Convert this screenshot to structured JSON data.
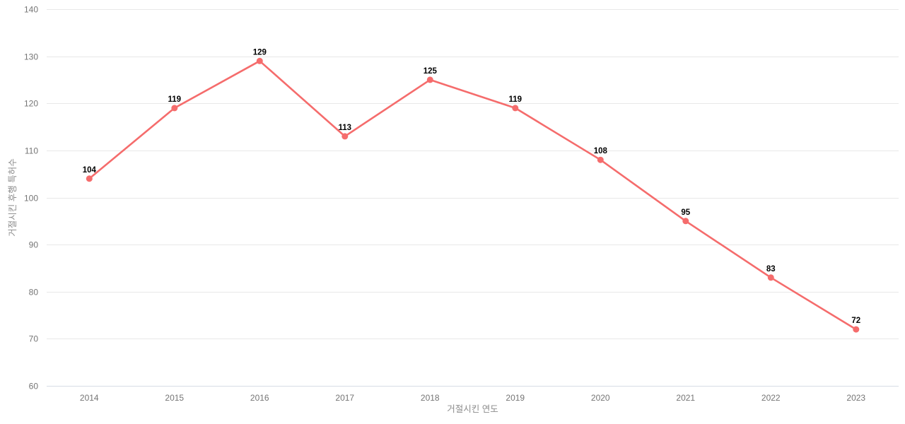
{
  "chart_data": {
    "type": "line",
    "title": "",
    "xlabel": "거절시킨 연도",
    "ylabel": "거절시킨 후행 특허수",
    "categories": [
      "2014",
      "2015",
      "2016",
      "2017",
      "2018",
      "2019",
      "2020",
      "2021",
      "2022",
      "2023"
    ],
    "series": [
      {
        "name": "거절시킨 후행 특허수",
        "values": [
          104,
          119,
          129,
          113,
          125,
          119,
          108,
          95,
          83,
          72
        ]
      }
    ],
    "data_labels_visible": true,
    "ylim": [
      60,
      140
    ],
    "yticks": [
      60,
      70,
      80,
      90,
      100,
      110,
      120,
      130,
      140
    ],
    "grid": "horizontal",
    "legend_position": "none",
    "colors": {
      "line": "#f56c6c",
      "point": "#f56c6c",
      "data_label": "#000000",
      "tick_label": "#757575",
      "axis_title": "#8c8c8c",
      "gridline": "#e8e8e8",
      "axis_line": "#d6dce5",
      "background": "#ffffff"
    }
  }
}
